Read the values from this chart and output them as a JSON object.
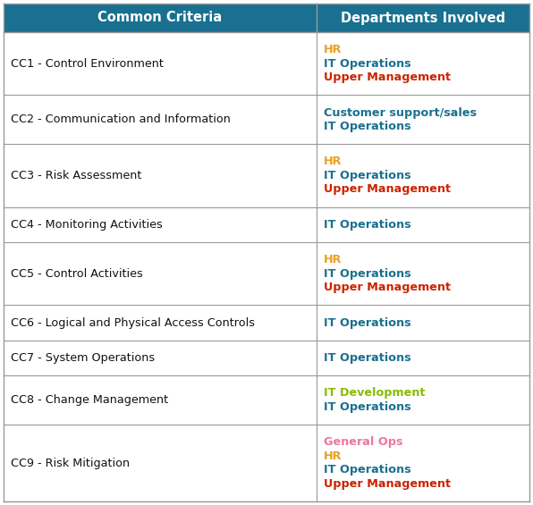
{
  "header": [
    "Common Criteria",
    "Departments Involved"
  ],
  "header_bg": "#1a7090",
  "header_text_color": "#ffffff",
  "header_fontsize": 10.5,
  "border_color": "#999999",
  "criteria_fontsize": 9.2,
  "dept_fontsize": 9.2,
  "criteria_color": "#111111",
  "col_split": 0.595,
  "rows": [
    {
      "criteria": "CC1 - Control Environment",
      "departments": [
        {
          "text": "HR",
          "color": "#e8a020"
        },
        {
          "text": "IT Operations",
          "color": "#1a7090"
        },
        {
          "text": "Upper Management",
          "color": "#cc2200"
        }
      ]
    },
    {
      "criteria": "CC2 - Communication and Information",
      "departments": [
        {
          "text": "Customer support/sales",
          "color": "#1a7090"
        },
        {
          "text": "IT Operations",
          "color": "#1a7090"
        }
      ]
    },
    {
      "criteria": "CC3 - Risk Assessment",
      "departments": [
        {
          "text": "HR",
          "color": "#e8a020"
        },
        {
          "text": "IT Operations",
          "color": "#1a7090"
        },
        {
          "text": "Upper Management",
          "color": "#cc2200"
        }
      ]
    },
    {
      "criteria": "CC4 - Monitoring Activities",
      "departments": [
        {
          "text": "IT Operations",
          "color": "#1a7090"
        }
      ]
    },
    {
      "criteria": "CC5 - Control Activities",
      "departments": [
        {
          "text": "HR",
          "color": "#e8a020"
        },
        {
          "text": "IT Operations",
          "color": "#1a7090"
        },
        {
          "text": "Upper Management",
          "color": "#cc2200"
        }
      ]
    },
    {
      "criteria": "CC6 - Logical and Physical Access Controls",
      "departments": [
        {
          "text": "IT Operations",
          "color": "#1a7090"
        }
      ]
    },
    {
      "criteria": "CC7 - System Operations",
      "departments": [
        {
          "text": "IT Operations",
          "color": "#1a7090"
        }
      ]
    },
    {
      "criteria": "CC8 - Change Management",
      "departments": [
        {
          "text": "IT Development",
          "color": "#88bb00"
        },
        {
          "text": "IT Operations",
          "color": "#1a7090"
        }
      ]
    },
    {
      "criteria": "CC9 - Risk Mitigation",
      "departments": [
        {
          "text": "General Ops",
          "color": "#ee7799"
        },
        {
          "text": "HR",
          "color": "#e8a020"
        },
        {
          "text": "IT Operations",
          "color": "#1a7090"
        },
        {
          "text": "Upper Management",
          "color": "#cc2200"
        }
      ]
    }
  ],
  "fig_width": 5.96,
  "fig_height": 5.65,
  "dpi": 100
}
